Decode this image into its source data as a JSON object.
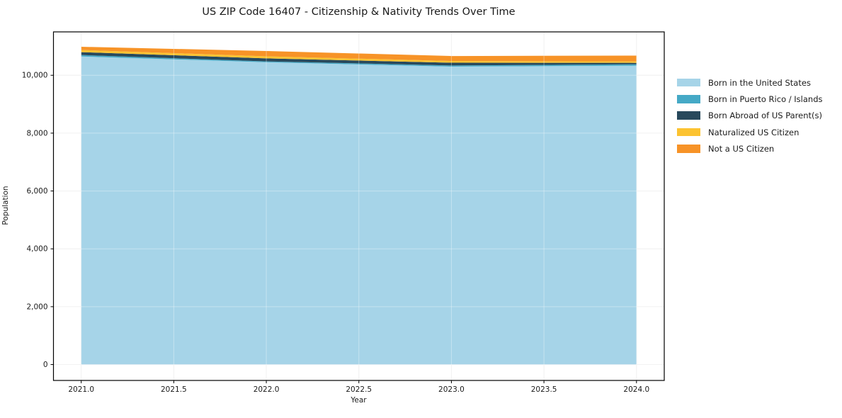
{
  "title": "US ZIP Code 16407 - Citizenship & Nativity Trends Over Time",
  "chart_data": {
    "type": "area",
    "stacked": true,
    "title": "US ZIP Code 16407 - Citizenship & Nativity Trends Over Time",
    "xlabel": "Year",
    "ylabel": "Population",
    "x": [
      2021,
      2022,
      2023,
      2024
    ],
    "series": [
      {
        "name": "Born in the United States",
        "color": "#a6d4e8",
        "values": [
          10650,
          10450,
          10300,
          10330
        ]
      },
      {
        "name": "Born in Puerto Rico / Islands",
        "color": "#45a9c6",
        "values": [
          50,
          30,
          40,
          50
        ]
      },
      {
        "name": "Born Abroad of US Parent(s)",
        "color": "#28495c",
        "values": [
          100,
          105,
          95,
          50
        ]
      },
      {
        "name": "Naturalized US Citizen",
        "color": "#fcc331",
        "values": [
          75,
          70,
          60,
          50
        ]
      },
      {
        "name": "Not a US Citizen",
        "color": "#f79327",
        "values": [
          110,
          185,
          170,
          200
        ]
      }
    ],
    "totals": [
      10985,
      10840,
      10665,
      10680
    ],
    "xticks": {
      "values": [
        2021.0,
        2021.5,
        2022.0,
        2022.5,
        2023.0,
        2023.5,
        2024.0
      ],
      "labels": [
        "2021.0",
        "2021.5",
        "2022.0",
        "2022.5",
        "2023.0",
        "2023.5",
        "2024.0"
      ]
    },
    "yticks": {
      "values": [
        0,
        2000,
        4000,
        6000,
        8000,
        10000
      ],
      "labels": [
        "0",
        "2,000",
        "4,000",
        "6,000",
        "8,000",
        "10,000"
      ]
    },
    "xlim": [
      2020.85,
      2024.15
    ],
    "ylim": [
      -550,
      11500
    ],
    "grid": true,
    "legend_position": "right-outside",
    "colors": {
      "frame": "#000000",
      "grid_under": "#ebebeb",
      "grid_over": "rgba(255,255,255,0.35)",
      "background": "#ffffff"
    }
  }
}
